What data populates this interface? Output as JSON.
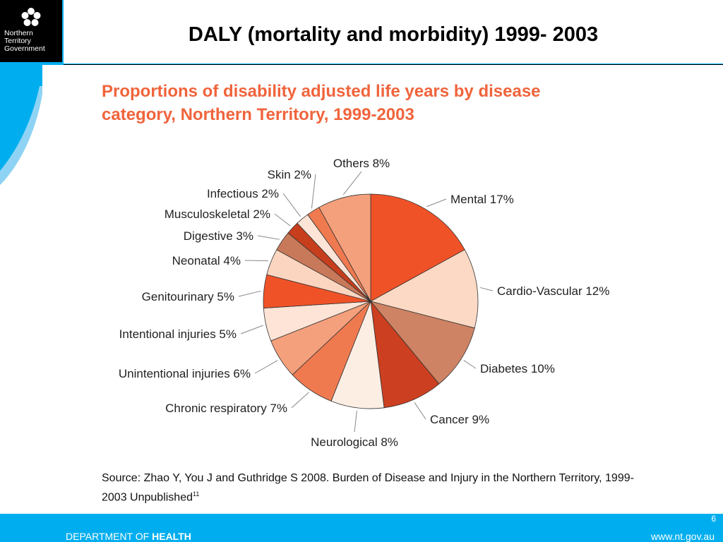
{
  "header": {
    "title": "DALY  (mortality and morbidity) 1999- 2003",
    "logo_lines": [
      "Northern",
      "Territory",
      "Government"
    ]
  },
  "chart_data": {
    "type": "pie",
    "title": "Proportions of disability adjusted life years by disease category, Northern Territory, 1999-2003",
    "slices": [
      {
        "label": "Mental 17%",
        "value": 17,
        "color": "#f05228"
      },
      {
        "label": "Cardio-Vascular 12%",
        "value": 12,
        "color": "#fcd9c4"
      },
      {
        "label": "Diabetes 10%",
        "value": 10,
        "color": "#cd8364"
      },
      {
        "label": "Cancer 9%",
        "value": 9,
        "color": "#cc3f20"
      },
      {
        "label": "Neurological 8%",
        "value": 8,
        "color": "#fdeee4"
      },
      {
        "label": "Chronic respiratory 7%",
        "value": 7,
        "color": "#f07a50"
      },
      {
        "label": "Unintentional injuries 6%",
        "value": 6,
        "color": "#f5a07c"
      },
      {
        "label": "Intentional injuries 5%",
        "value": 5,
        "color": "#fde4d6"
      },
      {
        "label": "Genitourinary 5%",
        "value": 5,
        "color": "#f05228"
      },
      {
        "label": "Neonatal 4%",
        "value": 4,
        "color": "#fcd5c0"
      },
      {
        "label": "Digestive 3%",
        "value": 3,
        "color": "#c8795a"
      },
      {
        "label": "Musculoskeletal 2%",
        "value": 2,
        "color": "#c73e1c"
      },
      {
        "label": "Infectious 2%",
        "value": 2,
        "color": "#fde4d6"
      },
      {
        "label": "Skin 2%",
        "value": 2,
        "color": "#f07a50"
      },
      {
        "label": "Others 8%",
        "value": 8,
        "color": "#f5a07c"
      }
    ]
  },
  "source": {
    "text": "Source: Zhao Y, You J and Guthridge S 2008. Burden of Disease and Injury in the Northern Territory, 1999-2003 Unpublished",
    "footnote": "11"
  },
  "footer": {
    "dept_prefix": "DEPARTMENT OF ",
    "dept_bold": "HEALTH",
    "url": "www.nt.gov.au",
    "page_number": "6"
  },
  "colors": {
    "accent_blue": "#00aeef",
    "title_orange": "#f0643c"
  }
}
